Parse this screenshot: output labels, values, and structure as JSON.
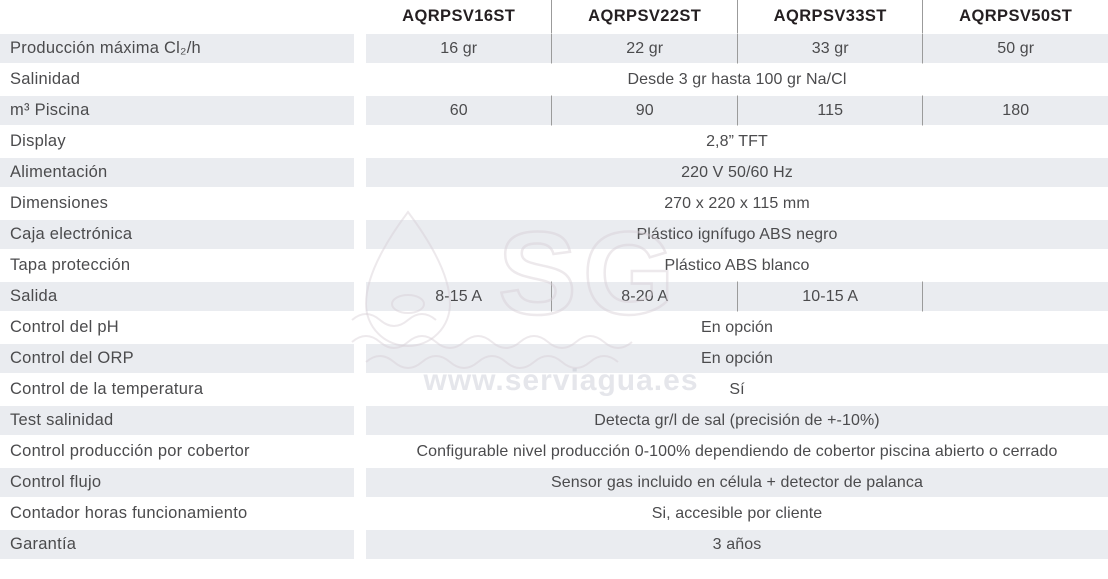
{
  "table": {
    "columns": [
      "AQRPSV16ST",
      "AQRPSV22ST",
      "AQRPSV33ST",
      "AQRPSV50ST"
    ],
    "rows": [
      {
        "label": "Producción máxima Cl₂/h",
        "values": [
          "16 gr",
          "22 gr",
          "33 gr",
          "50 gr"
        ]
      },
      {
        "label": "Salinidad",
        "value": "Desde 3 gr hasta 100 gr Na/Cl"
      },
      {
        "label": "m³ Piscina",
        "values": [
          "60",
          "90",
          "115",
          "180"
        ]
      },
      {
        "label": "Display",
        "value": "2,8” TFT"
      },
      {
        "label": "Alimentación",
        "value": "220 V 50/60 Hz"
      },
      {
        "label": "Dimensiones",
        "value": "270 x 220 x 115 mm"
      },
      {
        "label": "Caja electrónica",
        "value": "Plástico ignífugo ABS negro"
      },
      {
        "label": "Tapa protección",
        "value": "Plástico ABS blanco"
      },
      {
        "label": "Salida",
        "values": [
          "8-15 A",
          "8-20 A",
          "10-15 A",
          ""
        ]
      },
      {
        "label": "Control del pH",
        "value": "En opción"
      },
      {
        "label": "Control del ORP",
        "value": "En opción"
      },
      {
        "label": "Control de la temperatura",
        "value": "Sí"
      },
      {
        "label": "Test salinidad",
        "value": "Detecta gr/l de sal (precisión de +-10%)"
      },
      {
        "label": "Control producción por cobertor",
        "value": "Configurable nivel producción 0-100% dependiendo de cobertor piscina abierto o cerrado"
      },
      {
        "label": "Control flujo",
        "value": "Sensor gas incluido en célula + detector de palanca"
      },
      {
        "label": "Contador horas funcionamiento",
        "value": "Si, accesible por cliente"
      },
      {
        "label": "Garantía",
        "value": "3 años"
      }
    ]
  },
  "watermark": {
    "url": "www.serviagua.es",
    "logo": "SG"
  },
  "colors": {
    "row_shade": "#eaecf0",
    "header_text": "#241f21",
    "body_text": "#4b4b4d",
    "divider": "#9b9b9b",
    "watermark": "#d8cfd4"
  }
}
